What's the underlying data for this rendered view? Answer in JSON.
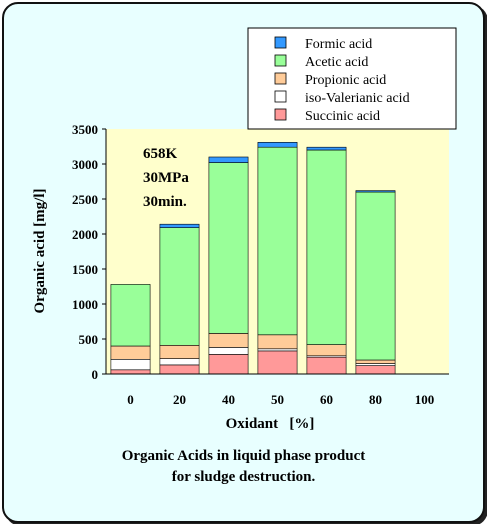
{
  "chart_data": {
    "type": "bar",
    "stacked": true,
    "categories": [
      "0",
      "20",
      "40",
      "50",
      "60",
      "80",
      "100"
    ],
    "series": [
      {
        "name": "Succinic acid",
        "color": "#ff9999",
        "values": [
          60,
          130,
          280,
          330,
          240,
          120,
          null
        ]
      },
      {
        "name": "iso-Valerianic acid",
        "color": "#ffffff",
        "values": [
          150,
          90,
          100,
          30,
          20,
          30,
          null
        ]
      },
      {
        "name": "Propionic acid",
        "color": "#ffcc99",
        "values": [
          190,
          190,
          200,
          200,
          160,
          50,
          null
        ]
      },
      {
        "name": "Acetic acid",
        "color": "#99ff99",
        "values": [
          880,
          1680,
          2440,
          2680,
          2780,
          2400,
          null
        ]
      },
      {
        "name": "Formic acid",
        "color": "#3399ff",
        "values": [
          0,
          50,
          80,
          70,
          40,
          20,
          null
        ]
      }
    ],
    "legend_order": [
      "Formic acid",
      "Acetic acid",
      "Propionic acid",
      "iso-Valerianic acid",
      "Succinic acid"
    ],
    "legend_position": "top-right",
    "ylim": [
      0,
      3500
    ],
    "yticks": [
      "0",
      "500",
      "1000",
      "1500",
      "2000",
      "2500",
      "3000",
      "3500"
    ],
    "ylabel": "Organic acid  [mg/l]",
    "xlabel": "Oxidant   [%]",
    "annotation": [
      "658K",
      "30MPa",
      "30min."
    ],
    "plot_background": "#ffffcc",
    "frame_background": "#e8ffff"
  },
  "caption": {
    "line1": "Organic Acids in liquid phase product",
    "line2": "for sludge destruction."
  }
}
